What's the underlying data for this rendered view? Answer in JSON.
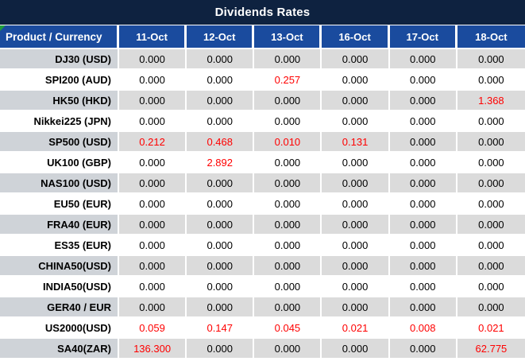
{
  "title": "Dividends Rates",
  "colors": {
    "title_bg": "#0E2240",
    "header_bg": "#1A4B9E",
    "header_text": "#FFFFFF",
    "row_gray": "#DBDBDB",
    "label_gray": "#CFD3D8",
    "row_white": "#FFFFFF",
    "value_red": "#FF0000",
    "value_black": "#000000",
    "corner_marker_green": "#1F9D3C"
  },
  "table": {
    "label_header": "Product / Currency",
    "columns": [
      "11-Oct",
      "12-Oct",
      "13-Oct",
      "16-Oct",
      "17-Oct",
      "18-Oct"
    ],
    "rows": [
      {
        "label": "DJ30 (USD)",
        "values": [
          "0.000",
          "0.000",
          "0.000",
          "0.000",
          "0.000",
          "0.000"
        ],
        "red": [
          false,
          false,
          false,
          false,
          false,
          false
        ]
      },
      {
        "label": "SPI200 (AUD)",
        "values": [
          "0.000",
          "0.000",
          "0.257",
          "0.000",
          "0.000",
          "0.000"
        ],
        "red": [
          false,
          false,
          true,
          false,
          false,
          false
        ]
      },
      {
        "label": "HK50 (HKD)",
        "values": [
          "0.000",
          "0.000",
          "0.000",
          "0.000",
          "0.000",
          "1.368"
        ],
        "red": [
          false,
          false,
          false,
          false,
          false,
          true
        ]
      },
      {
        "label": "Nikkei225 (JPN)",
        "values": [
          "0.000",
          "0.000",
          "0.000",
          "0.000",
          "0.000",
          "0.000"
        ],
        "red": [
          false,
          false,
          false,
          false,
          false,
          false
        ]
      },
      {
        "label": "SP500 (USD)",
        "values": [
          "0.212",
          "0.468",
          "0.010",
          "0.131",
          "0.000",
          "0.000"
        ],
        "red": [
          true,
          true,
          true,
          true,
          false,
          false
        ]
      },
      {
        "label": "UK100 (GBP)",
        "values": [
          "0.000",
          "2.892",
          "0.000",
          "0.000",
          "0.000",
          "0.000"
        ],
        "red": [
          false,
          true,
          false,
          false,
          false,
          false
        ]
      },
      {
        "label": "NAS100 (USD)",
        "values": [
          "0.000",
          "0.000",
          "0.000",
          "0.000",
          "0.000",
          "0.000"
        ],
        "red": [
          false,
          false,
          false,
          false,
          false,
          false
        ]
      },
      {
        "label": "EU50 (EUR)",
        "values": [
          "0.000",
          "0.000",
          "0.000",
          "0.000",
          "0.000",
          "0.000"
        ],
        "red": [
          false,
          false,
          false,
          false,
          false,
          false
        ]
      },
      {
        "label": "FRA40 (EUR)",
        "values": [
          "0.000",
          "0.000",
          "0.000",
          "0.000",
          "0.000",
          "0.000"
        ],
        "red": [
          false,
          false,
          false,
          false,
          false,
          false
        ]
      },
      {
        "label": "ES35 (EUR)",
        "values": [
          "0.000",
          "0.000",
          "0.000",
          "0.000",
          "0.000",
          "0.000"
        ],
        "red": [
          false,
          false,
          false,
          false,
          false,
          false
        ]
      },
      {
        "label": "CHINA50(USD)",
        "values": [
          "0.000",
          "0.000",
          "0.000",
          "0.000",
          "0.000",
          "0.000"
        ],
        "red": [
          false,
          false,
          false,
          false,
          false,
          false
        ]
      },
      {
        "label": "INDIA50(USD)",
        "values": [
          "0.000",
          "0.000",
          "0.000",
          "0.000",
          "0.000",
          "0.000"
        ],
        "red": [
          false,
          false,
          false,
          false,
          false,
          false
        ]
      },
      {
        "label": "GER40 / EUR",
        "values": [
          "0.000",
          "0.000",
          "0.000",
          "0.000",
          "0.000",
          "0.000"
        ],
        "red": [
          false,
          false,
          false,
          false,
          false,
          false
        ]
      },
      {
        "label": "US2000(USD)",
        "values": [
          "0.059",
          "0.147",
          "0.045",
          "0.021",
          "0.008",
          "0.021"
        ],
        "red": [
          true,
          true,
          true,
          true,
          true,
          true
        ]
      },
      {
        "label": "SA40(ZAR)",
        "values": [
          "136.300",
          "0.000",
          "0.000",
          "0.000",
          "0.000",
          "62.775"
        ],
        "red": [
          true,
          false,
          false,
          false,
          false,
          true
        ]
      }
    ]
  }
}
